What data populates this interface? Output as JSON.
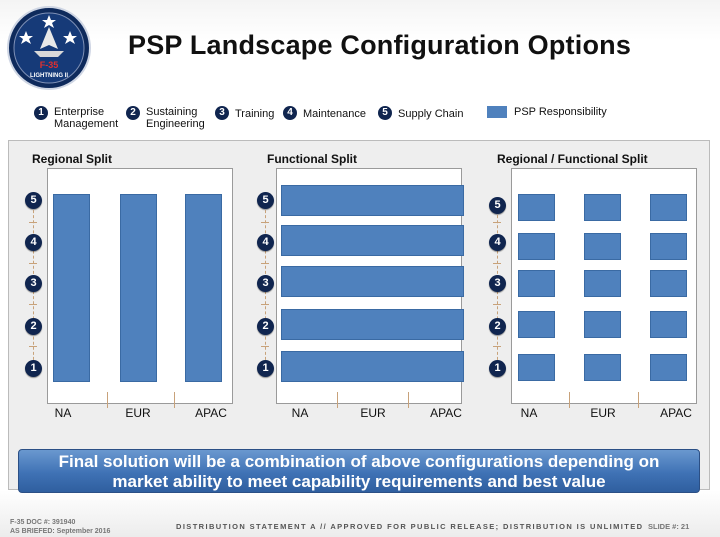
{
  "header": {
    "title": "PSP Landscape Configuration Options",
    "logo_text": "F-35",
    "logo_subtext": "LIGHTNING II"
  },
  "legend": {
    "items": [
      {
        "num": "1",
        "label_line1": "Enterprise",
        "label_line2": "Management"
      },
      {
        "num": "2",
        "label_line1": "Sustaining",
        "label_line2": "Engineering"
      },
      {
        "num": "3",
        "label_line1": "Training",
        "label_line2": ""
      },
      {
        "num": "4",
        "label_line1": "Maintenance",
        "label_line2": ""
      },
      {
        "num": "5",
        "label_line1": "Supply Chain",
        "label_line2": ""
      }
    ],
    "psp_label": "PSP Responsibility"
  },
  "panels": [
    {
      "title": "Regional Split",
      "badges": [
        "5",
        "4",
        "3",
        "2",
        "1"
      ],
      "regions": [
        "NA",
        "EUR",
        "APAC"
      ]
    },
    {
      "title": "Functional Split",
      "badges": [
        "5",
        "4",
        "3",
        "2",
        "1"
      ],
      "regions": [
        "NA",
        "EUR",
        "APAC"
      ]
    },
    {
      "title": "Regional / Functional Split",
      "badges": [
        "5",
        "4",
        "3",
        "2",
        "1"
      ],
      "regions": [
        "NA",
        "EUR",
        "APAC"
      ]
    }
  ],
  "banner": {
    "line1": "Final solution will be a combination of above configurations depending on",
    "line2": "market ability to meet capability requirements and best value"
  },
  "footer": {
    "doc_number": "F-35 DOC #: 391940",
    "as_briefed": "AS BRIEFED: September 2016",
    "distribution": "DISTRIBUTION STATEMENT A // APPROVED FOR PUBLIC RELEASE; DISTRIBUTION IS UNLIMITED",
    "slide": "SLIDE #: 21"
  },
  "colors": {
    "navy": "#10254f",
    "psp_blue": "#4f81bd",
    "banner_blue": "#3f72b5"
  }
}
